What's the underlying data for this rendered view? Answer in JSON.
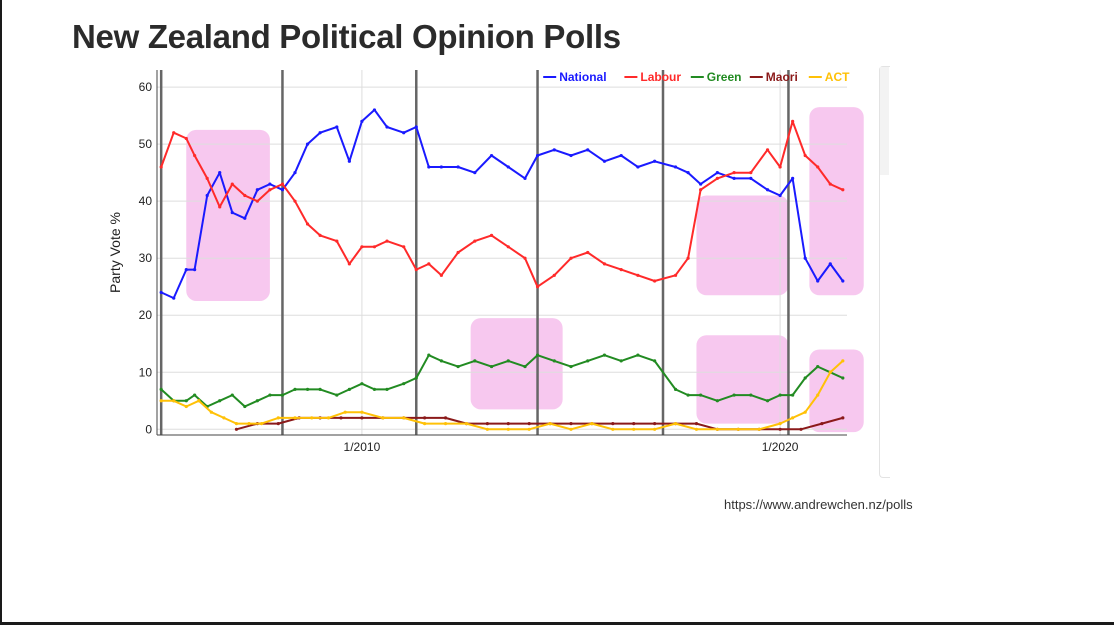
{
  "slide": {
    "title": "New Zealand Political Opinion Polls",
    "source": "https://www.andrewchen.nz/polls"
  },
  "chart_data": {
    "type": "line",
    "title": "",
    "xlabel": "",
    "ylabel": "Party Vote %",
    "xlim": [
      2005.1,
      2021.6
    ],
    "ylim": [
      -1,
      63
    ],
    "y_ticks": [
      0,
      10,
      20,
      30,
      40,
      50,
      60
    ],
    "x_ticks": [
      {
        "value": 2010,
        "label": "1/2010"
      },
      {
        "value": 2020,
        "label": "1/2020"
      }
    ],
    "grid": true,
    "legend_position": "top-right",
    "election_lines": [
      2005.2,
      2008.1,
      2011.3,
      2014.2,
      2017.2,
      2020.2
    ],
    "highlight_regions": [
      {
        "x": [
          2005.8,
          2007.8
        ],
        "y": [
          22.5,
          52.5
        ]
      },
      {
        "x": [
          2012.6,
          2014.8
        ],
        "y": [
          3.5,
          19.5
        ]
      },
      {
        "x": [
          2018.0,
          2020.2
        ],
        "y": [
          23.5,
          41.0
        ]
      },
      {
        "x": [
          2018.0,
          2020.2
        ],
        "y": [
          1.0,
          16.5
        ]
      },
      {
        "x": [
          2020.7,
          2022.0
        ],
        "y": [
          23.5,
          56.5
        ]
      },
      {
        "x": [
          2020.7,
          2022.0
        ],
        "y": [
          -0.5,
          14.0
        ]
      }
    ],
    "highlight_color": "#f4b6ea",
    "series": [
      {
        "name": "National",
        "color": "#1a1aff",
        "x": [
          2005.2,
          2005.5,
          2005.8,
          2006.0,
          2006.3,
          2006.6,
          2006.9,
          2007.2,
          2007.5,
          2007.8,
          2008.1,
          2008.4,
          2008.7,
          2009.0,
          2009.4,
          2009.7,
          2010.0,
          2010.3,
          2010.6,
          2011.0,
          2011.3,
          2011.6,
          2011.9,
          2012.3,
          2012.7,
          2013.1,
          2013.5,
          2013.9,
          2014.2,
          2014.6,
          2015.0,
          2015.4,
          2015.8,
          2016.2,
          2016.6,
          2017.0,
          2017.5,
          2017.8,
          2018.1,
          2018.5,
          2018.9,
          2019.3,
          2019.7,
          2020.0,
          2020.3,
          2020.6,
          2020.9,
          2021.2,
          2021.5
        ],
        "values": [
          24,
          23,
          28,
          28,
          41,
          45,
          38,
          37,
          42,
          43,
          42,
          45,
          50,
          52,
          53,
          47,
          54,
          56,
          53,
          52,
          53,
          46,
          46,
          46,
          45,
          48,
          46,
          44,
          48,
          49,
          48,
          49,
          47,
          48,
          46,
          47,
          46,
          45,
          43,
          45,
          44,
          44,
          42,
          41,
          44,
          30,
          26,
          29,
          26
        ]
      },
      {
        "name": "Labour",
        "color": "#ff2a2a",
        "x": [
          2005.2,
          2005.5,
          2005.8,
          2006.0,
          2006.3,
          2006.6,
          2006.9,
          2007.2,
          2007.5,
          2007.8,
          2008.1,
          2008.4,
          2008.7,
          2009.0,
          2009.4,
          2009.7,
          2010.0,
          2010.3,
          2010.6,
          2011.0,
          2011.3,
          2011.6,
          2011.9,
          2012.3,
          2012.7,
          2013.1,
          2013.5,
          2013.9,
          2014.2,
          2014.6,
          2015.0,
          2015.4,
          2015.8,
          2016.2,
          2016.6,
          2017.0,
          2017.5,
          2017.8,
          2018.1,
          2018.5,
          2018.9,
          2019.3,
          2019.7,
          2020.0,
          2020.3,
          2020.6,
          2020.9,
          2021.2,
          2021.5
        ],
        "values": [
          46,
          52,
          51,
          48,
          44,
          39,
          43,
          41,
          40,
          42,
          43,
          40,
          36,
          34,
          33,
          29,
          32,
          32,
          33,
          32,
          28,
          29,
          27,
          31,
          33,
          34,
          32,
          30,
          25,
          27,
          30,
          31,
          29,
          28,
          27,
          26,
          27,
          30,
          42,
          44,
          45,
          45,
          49,
          46,
          54,
          48,
          46,
          43,
          42
        ]
      },
      {
        "name": "Green",
        "color": "#228b22",
        "x": [
          2005.2,
          2005.5,
          2005.8,
          2006.0,
          2006.3,
          2006.6,
          2006.9,
          2007.2,
          2007.5,
          2007.8,
          2008.1,
          2008.4,
          2008.7,
          2009.0,
          2009.4,
          2009.7,
          2010.0,
          2010.3,
          2010.6,
          2011.0,
          2011.3,
          2011.6,
          2011.9,
          2012.3,
          2012.7,
          2013.1,
          2013.5,
          2013.9,
          2014.2,
          2014.6,
          2015.0,
          2015.4,
          2015.8,
          2016.2,
          2016.6,
          2017.0,
          2017.5,
          2017.8,
          2018.1,
          2018.5,
          2018.9,
          2019.3,
          2019.7,
          2020.0,
          2020.3,
          2020.6,
          2020.9,
          2021.2,
          2021.5
        ],
        "values": [
          7,
          5,
          5,
          6,
          4,
          5,
          6,
          4,
          5,
          6,
          6,
          7,
          7,
          7,
          6,
          7,
          8,
          7,
          7,
          8,
          9,
          13,
          12,
          11,
          12,
          11,
          12,
          11,
          13,
          12,
          11,
          12,
          13,
          12,
          13,
          12,
          7,
          6,
          6,
          5,
          6,
          6,
          5,
          6,
          6,
          9,
          11,
          10,
          9
        ]
      },
      {
        "name": "Maori",
        "color": "#8b1a1a",
        "x": [
          2007.0,
          2007.5,
          2008.0,
          2008.5,
          2009.0,
          2009.5,
          2010.0,
          2010.5,
          2011.0,
          2011.5,
          2012.0,
          2012.5,
          2013.0,
          2013.5,
          2014.0,
          2014.5,
          2015.0,
          2015.5,
          2016.0,
          2016.5,
          2017.0,
          2017.5,
          2018.0,
          2018.5,
          2019.0,
          2019.5,
          2020.0,
          2020.5,
          2021.0,
          2021.5
        ],
        "values": [
          0,
          1,
          1,
          2,
          2,
          2,
          2,
          2,
          2,
          2,
          2,
          1,
          1,
          1,
          1,
          1,
          1,
          1,
          1,
          1,
          1,
          1,
          1,
          0,
          0,
          0,
          0,
          0,
          1,
          2
        ]
      },
      {
        "name": "ACT",
        "color": "#ffc107",
        "x": [
          2005.2,
          2005.5,
          2005.8,
          2006.1,
          2006.4,
          2006.7,
          2007.0,
          2007.3,
          2007.6,
          2008.0,
          2008.4,
          2008.8,
          2009.2,
          2009.6,
          2010.0,
          2010.5,
          2011.0,
          2011.5,
          2012.0,
          2012.5,
          2013.0,
          2013.5,
          2014.0,
          2014.5,
          2015.0,
          2015.5,
          2016.0,
          2016.5,
          2017.0,
          2017.5,
          2018.0,
          2018.5,
          2019.0,
          2019.5,
          2020.0,
          2020.3,
          2020.6,
          2020.9,
          2021.2,
          2021.5
        ],
        "values": [
          5,
          5,
          4,
          5,
          3,
          2,
          1,
          1,
          1,
          2,
          2,
          2,
          2,
          3,
          3,
          2,
          2,
          1,
          1,
          1,
          0,
          0,
          0,
          1,
          0,
          1,
          0,
          0,
          0,
          1,
          0,
          0,
          0,
          0,
          1,
          2,
          3,
          6,
          10,
          12
        ]
      }
    ]
  }
}
